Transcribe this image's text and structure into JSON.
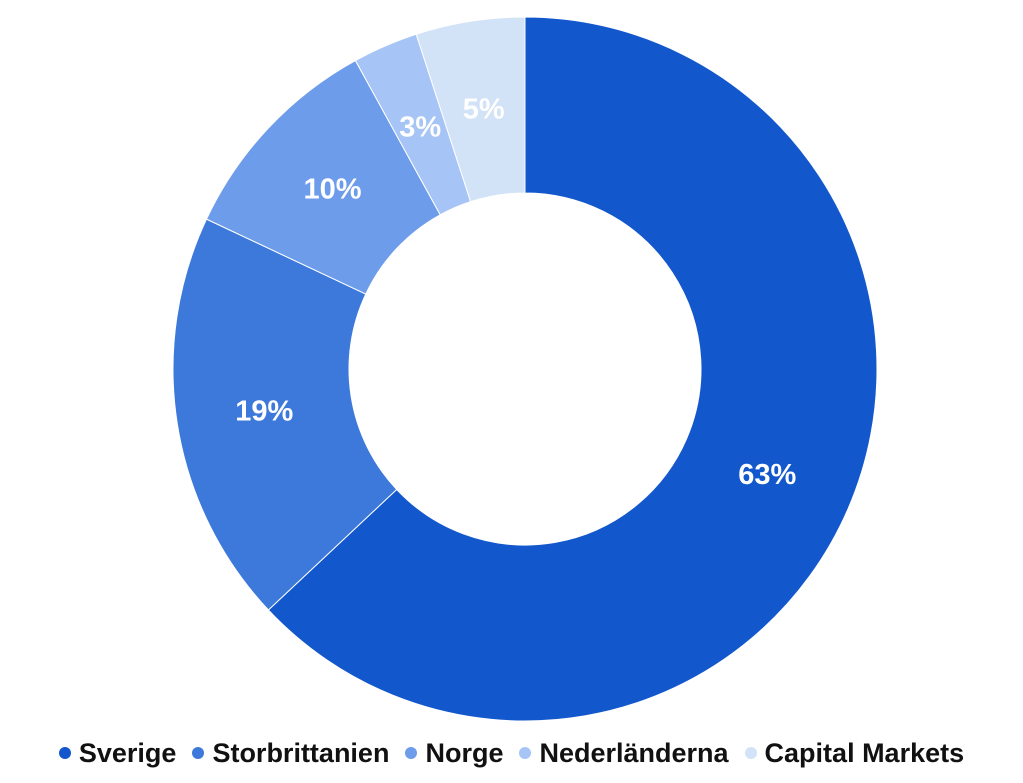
{
  "chart_data": {
    "type": "pie",
    "subtype": "donut",
    "legend_position": "bottom",
    "slices": [
      {
        "name": "Sverige",
        "value": 63,
        "label": "63%",
        "color": "#1257cc"
      },
      {
        "name": "Storbrittanien",
        "value": 19,
        "label": "19%",
        "color": "#3d79db"
      },
      {
        "name": "Norge",
        "value": 10,
        "label": "10%",
        "color": "#6d9ceb"
      },
      {
        "name": "Nederländerna",
        "value": 3,
        "label": "3%",
        "color": "#a6c4f5"
      },
      {
        "name": "Capital Markets",
        "value": 5,
        "label": "5%",
        "color": "#d2e2f7"
      }
    ]
  }
}
